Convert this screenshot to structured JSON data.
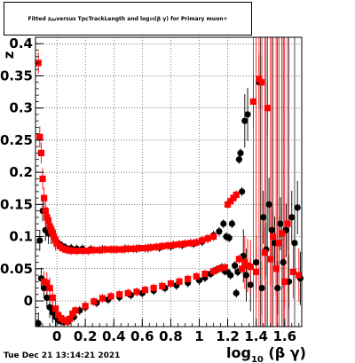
{
  "title_main": "Fitted  z",
  "title_sub": "μμ",
  "title_rest": " versus  TpcTrackLength and log",
  "title_sub2": "10",
  "title_tail": "(β γ) for Primary muon+",
  "timestamp": "Tue Dec 21 13:14:21 2021",
  "colors": {
    "series_black": "#000000",
    "series_red": "#ff0000",
    "axis": "#000000"
  },
  "chart_data": {
    "type": "scatter",
    "title": "Fitted z versus TpcTrackLength and log10(βγ) for Primary muon+",
    "xlabel": "log10(β γ)",
    "ylabel": "z",
    "xlim": [
      -0.15,
      1.72
    ],
    "ylim": [
      -0.04,
      0.41
    ],
    "x_ticks": [
      "0",
      "0.2",
      "0.4",
      "0.6",
      "0.8",
      "1",
      "1.2",
      "1.4",
      "1.6"
    ],
    "x_tick_values": [
      0,
      0.2,
      0.4,
      0.6,
      0.8,
      1.0,
      1.2,
      1.4,
      1.6
    ],
    "y_ticks": [
      "0",
      "0.05",
      "0.1",
      "0.15",
      "0.2",
      "0.25",
      "0.3",
      "0.35",
      "0.4"
    ],
    "y_tick_values": [
      0,
      0.05,
      0.1,
      0.15,
      0.2,
      0.25,
      0.3,
      0.35,
      0.4
    ],
    "grid": true,
    "series": [
      {
        "color": "#000000",
        "points": [
          [
            -0.13,
            -0.035
          ],
          [
            -0.12,
            0.094
          ],
          [
            -0.11,
            0.035
          ],
          [
            -0.1,
            0.14
          ],
          [
            -0.09,
            0.02
          ],
          [
            -0.08,
            0.11
          ],
          [
            -0.07,
            0.005
          ],
          [
            -0.06,
            0.105
          ],
          [
            -0.05,
            -0.01
          ],
          [
            -0.04,
            0.105
          ],
          [
            -0.03,
            -0.018
          ],
          [
            -0.02,
            0.1
          ],
          [
            -0.01,
            -0.025
          ],
          [
            0.0,
            0.092
          ],
          [
            0.01,
            -0.03
          ],
          [
            0.02,
            0.088
          ],
          [
            0.03,
            -0.032
          ],
          [
            0.04,
            0.085
          ],
          [
            0.05,
            -0.033
          ],
          [
            0.06,
            0.083
          ],
          [
            0.08,
            -0.032
          ],
          [
            0.1,
            0.082
          ],
          [
            0.12,
            -0.025
          ],
          [
            0.14,
            0.081
          ],
          [
            0.16,
            -0.015
          ],
          [
            0.18,
            0.081
          ],
          [
            0.2,
            -0.01
          ],
          [
            0.24,
            0.08
          ],
          [
            0.28,
            -0.003
          ],
          [
            0.32,
            0.08
          ],
          [
            0.36,
            0.002
          ],
          [
            0.4,
            0.08
          ],
          [
            0.44,
            0.006
          ],
          [
            0.48,
            0.081
          ],
          [
            0.52,
            0.009
          ],
          [
            0.56,
            0.081
          ],
          [
            0.6,
            0.012
          ],
          [
            0.64,
            0.082
          ],
          [
            0.68,
            0.016
          ],
          [
            0.72,
            0.083
          ],
          [
            0.76,
            0.02
          ],
          [
            0.8,
            0.085
          ],
          [
            0.84,
            0.024
          ],
          [
            0.88,
            0.087
          ],
          [
            0.92,
            0.028
          ],
          [
            0.96,
            0.089
          ],
          [
            1.0,
            0.032
          ],
          [
            1.02,
            0.092
          ],
          [
            1.04,
            0.036
          ],
          [
            1.06,
            0.097
          ],
          [
            1.08,
            0.042
          ],
          [
            1.1,
            0.102
          ],
          [
            1.12,
            0.048
          ],
          [
            1.14,
            0.108
          ],
          [
            1.16,
            0.052
          ],
          [
            1.17,
            0.12
          ],
          [
            1.18,
            0.046
          ],
          [
            1.19,
            0.1
          ],
          [
            1.2,
            0.045
          ],
          [
            1.21,
            0.098
          ],
          [
            1.22,
            0.04
          ],
          [
            1.23,
            0.12
          ],
          [
            1.25,
            0.055
          ],
          [
            1.26,
            0.012
          ],
          [
            1.27,
            0.045
          ],
          [
            1.28,
            0.22
          ],
          [
            1.29,
            0.23
          ],
          [
            1.3,
            0.17
          ],
          [
            1.31,
            0.07
          ],
          [
            1.32,
            0.28
          ],
          [
            1.33,
            0.04
          ],
          [
            1.34,
            0.29
          ],
          [
            1.36,
            0.025
          ],
          [
            1.38,
            0.31
          ],
          [
            1.4,
            0.06
          ],
          [
            1.42,
            0.34
          ],
          [
            1.44,
            0.02
          ],
          [
            1.45,
            0.13
          ],
          [
            1.47,
            0.08
          ],
          [
            1.49,
            0.15
          ],
          [
            1.51,
            0.11
          ],
          [
            1.53,
            0.09
          ],
          [
            1.55,
            0.02
          ],
          [
            1.57,
            0.12
          ],
          [
            1.59,
            0.06
          ],
          [
            1.61,
            0.11
          ],
          [
            1.63,
            0.03
          ],
          [
            1.65,
            0.13
          ],
          [
            1.67,
            0.09
          ],
          [
            1.69,
            0.145
          ],
          [
            1.71,
            0.035
          ]
        ]
      },
      {
        "color": "#ff0000",
        "points": [
          [
            -0.13,
            0.37
          ],
          [
            -0.12,
            0.255
          ],
          [
            -0.11,
            0.23
          ],
          [
            -0.1,
            0.19
          ],
          [
            -0.09,
            0.16
          ],
          [
            -0.08,
            0.14
          ],
          [
            -0.07,
            0.13
          ],
          [
            -0.06,
            0.125
          ],
          [
            -0.05,
            0.115
          ],
          [
            -0.04,
            0.11
          ],
          [
            -0.03,
            0.105
          ],
          [
            -0.02,
            0.1
          ],
          [
            -0.01,
            0.095
          ],
          [
            0.0,
            0.09
          ],
          [
            -0.09,
            0.03
          ],
          [
            -0.07,
            0.028
          ],
          [
            -0.05,
            0.02
          ],
          [
            -0.03,
            0.005
          ],
          [
            -0.01,
            -0.012
          ],
          [
            0.01,
            -0.022
          ],
          [
            0.03,
            -0.027
          ],
          [
            0.05,
            -0.03
          ],
          [
            0.07,
            -0.032
          ],
          [
            0.09,
            -0.028
          ],
          [
            0.11,
            -0.02
          ],
          [
            0.13,
            -0.015
          ],
          [
            0.02,
            0.085
          ],
          [
            0.04,
            0.082
          ],
          [
            0.06,
            0.08
          ],
          [
            0.08,
            0.079
          ],
          [
            0.1,
            0.078
          ],
          [
            0.14,
            0.078
          ],
          [
            0.18,
            0.078
          ],
          [
            0.22,
            0.078
          ],
          [
            0.26,
            0.079
          ],
          [
            0.3,
            0.079
          ],
          [
            0.34,
            0.08
          ],
          [
            0.38,
            0.08
          ],
          [
            0.42,
            0.08
          ],
          [
            0.46,
            0.08
          ],
          [
            0.5,
            0.081
          ],
          [
            0.54,
            0.081
          ],
          [
            0.58,
            0.082
          ],
          [
            0.62,
            0.082
          ],
          [
            0.66,
            0.083
          ],
          [
            0.7,
            0.084
          ],
          [
            0.74,
            0.085
          ],
          [
            0.78,
            0.086
          ],
          [
            0.82,
            0.087
          ],
          [
            0.86,
            0.088
          ],
          [
            0.9,
            0.089
          ],
          [
            0.94,
            0.09
          ],
          [
            0.98,
            0.091
          ],
          [
            1.02,
            0.094
          ],
          [
            1.06,
            0.097
          ],
          [
            1.1,
            0.1
          ],
          [
            0.2,
            -0.008
          ],
          [
            0.26,
            -0.001
          ],
          [
            0.32,
            0.004
          ],
          [
            0.38,
            0.007
          ],
          [
            0.44,
            0.01
          ],
          [
            0.5,
            0.012
          ],
          [
            0.56,
            0.014
          ],
          [
            0.62,
            0.017
          ],
          [
            0.68,
            0.02
          ],
          [
            0.74,
            0.023
          ],
          [
            0.8,
            0.027
          ],
          [
            0.86,
            0.03
          ],
          [
            0.92,
            0.034
          ],
          [
            0.98,
            0.038
          ],
          [
            1.04,
            0.042
          ],
          [
            1.1,
            0.046
          ],
          [
            1.14,
            0.05
          ],
          [
            1.18,
            0.052
          ],
          [
            1.2,
            0.15
          ],
          [
            1.22,
            0.155
          ],
          [
            1.24,
            0.16
          ],
          [
            1.26,
            0.165
          ],
          [
            1.28,
            0.065
          ],
          [
            1.3,
            0.05
          ],
          [
            1.32,
            0.06
          ],
          [
            1.34,
            0.055
          ],
          [
            1.36,
            0.053
          ],
          [
            1.38,
            0.31
          ],
          [
            1.4,
            0.045
          ],
          [
            1.42,
            0.345
          ],
          [
            1.44,
            0.34
          ],
          [
            1.46,
            0.075
          ],
          [
            1.48,
            0.3
          ],
          [
            1.5,
            0.065
          ],
          [
            1.52,
            0.1
          ],
          [
            1.54,
            0.05
          ],
          [
            1.56,
            0.09
          ],
          [
            1.58,
            0.105
          ],
          [
            1.6,
            0.03
          ],
          [
            1.62,
            0.12
          ],
          [
            1.66,
            0.045
          ],
          [
            1.7,
            0.04
          ]
        ]
      }
    ]
  }
}
